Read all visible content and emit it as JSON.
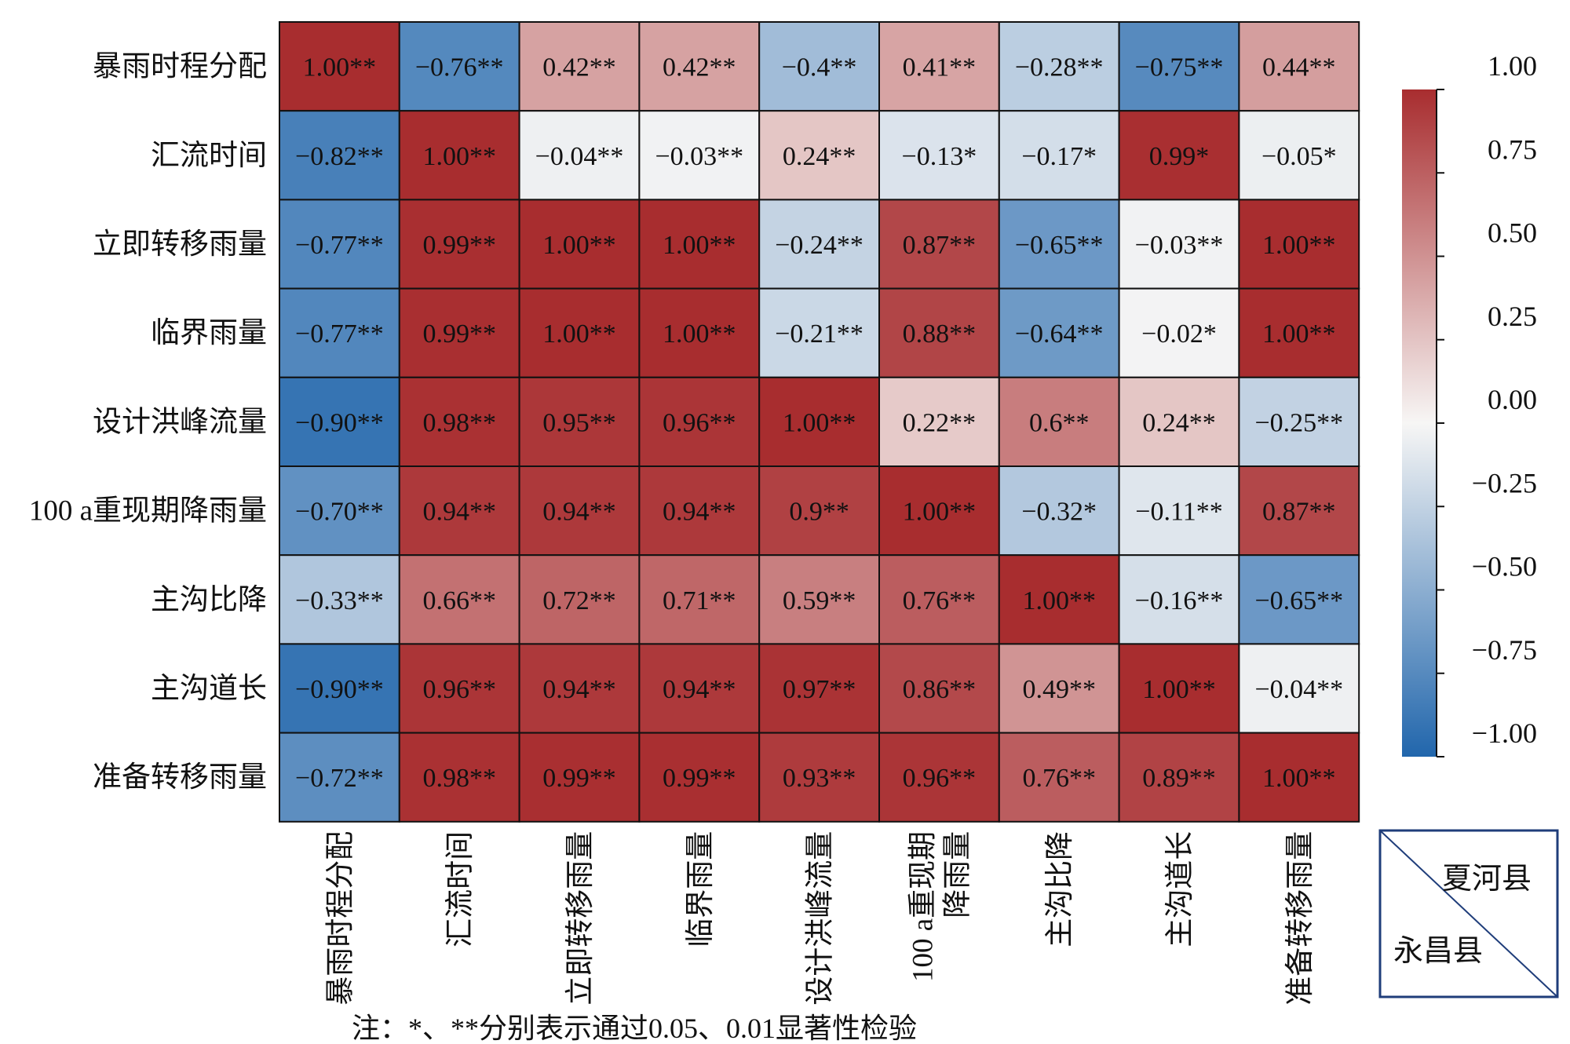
{
  "chart_data": {
    "type": "heatmap",
    "row_labels": [
      "暴雨时程分配",
      "汇流时间",
      "立即转移雨量",
      "临界雨量",
      "设计洪峰流量",
      "100 a重现期降雨量",
      "主沟比降",
      "主沟道长",
      "准备转移雨量"
    ],
    "col_labels": [
      [
        "暴雨时程分配"
      ],
      [
        "汇流时间"
      ],
      [
        "立即转移雨量"
      ],
      [
        "临界雨量"
      ],
      [
        "设计洪峰流量"
      ],
      [
        "100 a重现期",
        "降雨量"
      ],
      [
        "主沟比降"
      ],
      [
        "主沟道长"
      ],
      [
        "准备转移雨量"
      ]
    ],
    "values": [
      [
        1.0,
        -0.76,
        0.42,
        0.42,
        -0.4,
        0.41,
        -0.28,
        -0.75,
        0.44
      ],
      [
        -0.82,
        1.0,
        -0.04,
        -0.03,
        0.24,
        -0.13,
        -0.17,
        0.99,
        -0.05
      ],
      [
        -0.77,
        0.99,
        1.0,
        1.0,
        -0.24,
        0.87,
        -0.65,
        -0.03,
        1.0
      ],
      [
        -0.77,
        0.99,
        1.0,
        1.0,
        -0.21,
        0.88,
        -0.64,
        -0.02,
        1.0
      ],
      [
        -0.9,
        0.98,
        0.95,
        0.96,
        1.0,
        0.22,
        0.6,
        0.24,
        -0.25
      ],
      [
        -0.7,
        0.94,
        0.94,
        0.94,
        0.9,
        1.0,
        -0.32,
        -0.11,
        0.87
      ],
      [
        -0.33,
        0.66,
        0.72,
        0.71,
        0.59,
        0.76,
        1.0,
        -0.16,
        -0.65
      ],
      [
        -0.9,
        0.96,
        0.94,
        0.94,
        0.97,
        0.86,
        0.49,
        1.0,
        -0.04
      ],
      [
        -0.72,
        0.98,
        0.99,
        0.99,
        0.93,
        0.96,
        0.76,
        0.89,
        1.0
      ]
    ],
    "cell_labels": [
      [
        "1.00**",
        "−0.76**",
        "0.42**",
        "0.42**",
        "−0.4**",
        "0.41**",
        "−0.28**",
        "−0.75**",
        "0.44**"
      ],
      [
        "−0.82**",
        "1.00**",
        "−0.04**",
        "−0.03**",
        "0.24**",
        "−0.13*",
        "−0.17*",
        "0.99*",
        "−0.05*"
      ],
      [
        "−0.77**",
        "0.99**",
        "1.00**",
        "1.00**",
        "−0.24**",
        "0.87**",
        "−0.65**",
        "−0.03**",
        "1.00**"
      ],
      [
        "−0.77**",
        "0.99**",
        "1.00**",
        "1.00**",
        "−0.21**",
        "0.88**",
        "−0.64**",
        "−0.02*",
        "1.00**"
      ],
      [
        "−0.90**",
        "0.98**",
        "0.95**",
        "0.96**",
        "1.00**",
        "0.22**",
        "0.6**",
        "0.24**",
        "−0.25**"
      ],
      [
        "−0.70**",
        "0.94**",
        "0.94**",
        "0.94**",
        "0.9**",
        "1.00**",
        "−0.32*",
        "−0.11**",
        "0.87**"
      ],
      [
        "−0.33**",
        "0.66**",
        "0.72**",
        "0.71**",
        "0.59**",
        "0.76**",
        "1.00**",
        "−0.16**",
        "−0.65**"
      ],
      [
        "−0.90**",
        "0.96**",
        "0.94**",
        "0.94**",
        "0.97**",
        "0.86**",
        "0.49**",
        "1.00**",
        "−0.04**"
      ],
      [
        "−0.72**",
        "0.98**",
        "0.99**",
        "0.99**",
        "0.93**",
        "0.96**",
        "0.76**",
        "0.89**",
        "1.00**"
      ]
    ],
    "colorbar": {
      "range": [
        -1.0,
        1.0
      ],
      "ticks": [
        1.0,
        0.75,
        0.5,
        0.25,
        0.0,
        -0.25,
        -0.5,
        -0.75,
        -1.0
      ],
      "tick_labels": [
        "1.00",
        "0.75",
        "0.50",
        "0.25",
        "0.00",
        "−0.25",
        "−0.50",
        "−0.75",
        "−1.00"
      ],
      "colors": {
        "high": "#a82d2f",
        "mid": "#f7f6f5",
        "low": "#2166ac"
      }
    },
    "legend": {
      "upper_triangle": "夏河县",
      "lower_triangle": "永昌县",
      "placement": "bottom-right"
    },
    "note": "注：*、**分别表示通过0.05、0.01显著性检验"
  }
}
